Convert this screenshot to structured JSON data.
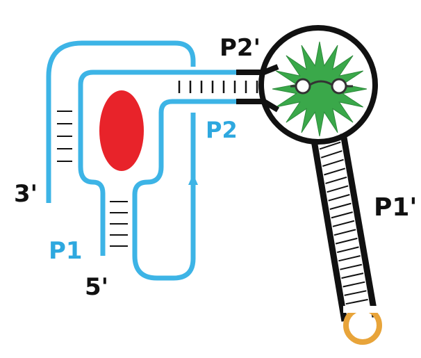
{
  "labels": {
    "p2_prime": "P2'",
    "p2": "P2",
    "p1_prime": "P1'",
    "p1": "P1",
    "three_prime": "3'",
    "five_prime": "5'"
  },
  "colors": {
    "strand_blue": "#3db4e6",
    "strand_black": "#111111",
    "red_blob": "#e8232a",
    "green_star": "#3aa84a",
    "loop_orange": "#e8a43a",
    "label_black": "#111111",
    "label_blue": "#2ea8df"
  }
}
